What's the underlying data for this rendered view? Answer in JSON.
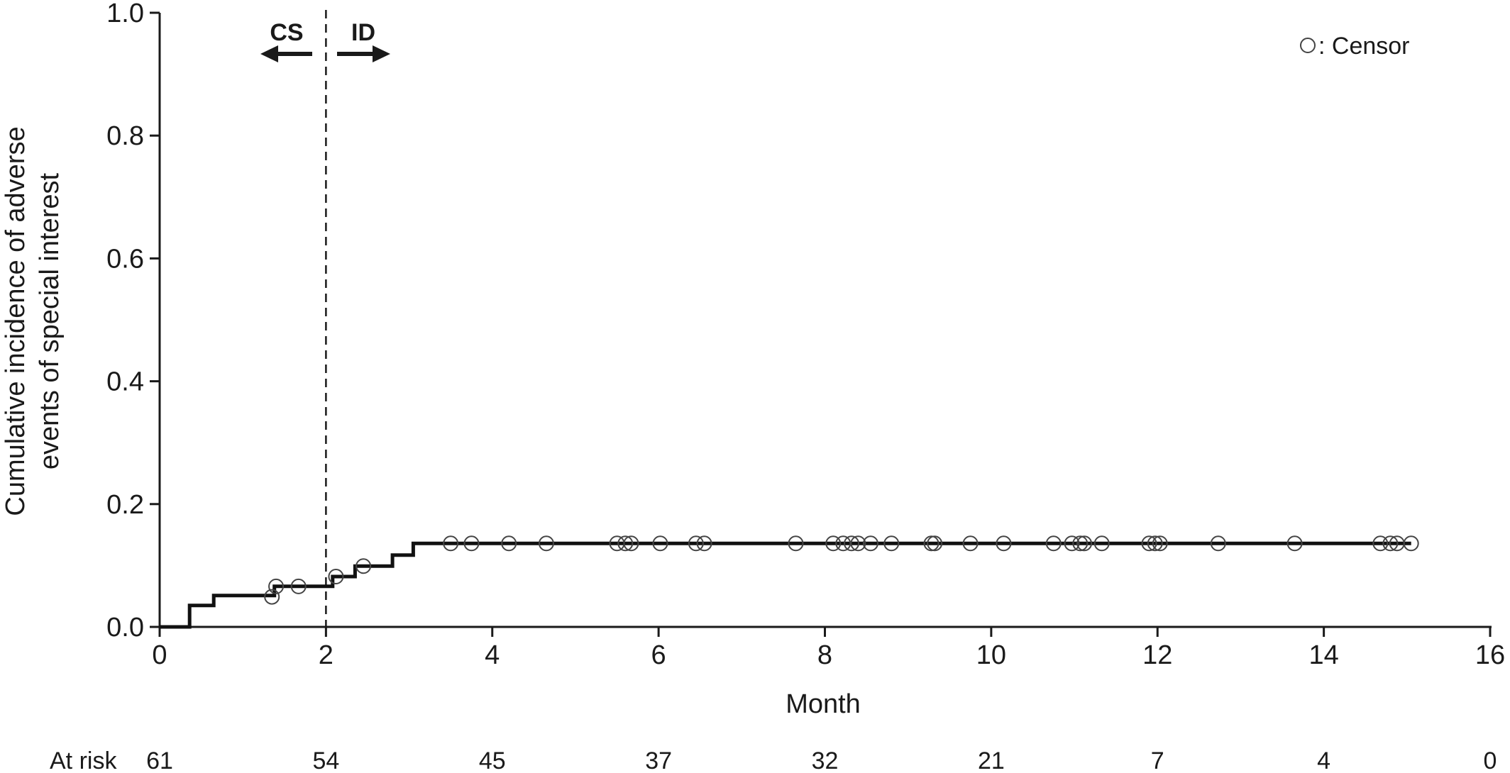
{
  "chart_data": {
    "type": "line",
    "subtype": "step",
    "title": "",
    "xlabel": "Month",
    "ylabel_lines": [
      "Cumulative incidence of adverse",
      "events of special interest"
    ],
    "xlim": [
      0,
      16
    ],
    "ylim": [
      0,
      1.0
    ],
    "xticks": [
      0,
      2,
      4,
      6,
      8,
      10,
      12,
      14,
      16
    ],
    "yticks": [
      0.0,
      0.2,
      0.4,
      0.6,
      0.8,
      1.0
    ],
    "xtick_labels": [
      "0",
      "2",
      "4",
      "6",
      "8",
      "10",
      "12",
      "14",
      "16"
    ],
    "ytick_labels": [
      "0.0",
      "0.2",
      "0.4",
      "0.6",
      "0.8",
      "1.0"
    ],
    "grid": false,
    "legend": {
      "position": "top-right",
      "symbol": "open-circle",
      "label": ": Censor"
    },
    "series": [
      {
        "step_points": [
          [
            0,
            0.0
          ],
          [
            0.36,
            0.0
          ],
          [
            0.36,
            0.035
          ],
          [
            0.65,
            0.035
          ],
          [
            0.65,
            0.051
          ],
          [
            1.38,
            0.051
          ],
          [
            1.38,
            0.066
          ],
          [
            2.08,
            0.066
          ],
          [
            2.08,
            0.082
          ],
          [
            2.35,
            0.082
          ],
          [
            2.35,
            0.099
          ],
          [
            2.8,
            0.099
          ],
          [
            2.8,
            0.117
          ],
          [
            3.05,
            0.117
          ],
          [
            3.05,
            0.136
          ],
          [
            15.05,
            0.136
          ]
        ],
        "censor_points": [
          [
            1.35,
            0.049
          ],
          [
            1.4,
            0.066
          ],
          [
            1.67,
            0.066
          ],
          [
            2.12,
            0.082
          ],
          [
            2.45,
            0.099
          ],
          [
            3.5,
            0.136
          ],
          [
            3.75,
            0.136
          ],
          [
            4.2,
            0.136
          ],
          [
            4.65,
            0.136
          ],
          [
            5.5,
            0.136
          ],
          [
            5.6,
            0.136
          ],
          [
            5.67,
            0.136
          ],
          [
            6.02,
            0.136
          ],
          [
            6.45,
            0.136
          ],
          [
            6.55,
            0.136
          ],
          [
            7.65,
            0.136
          ],
          [
            8.1,
            0.136
          ],
          [
            8.22,
            0.136
          ],
          [
            8.32,
            0.136
          ],
          [
            8.4,
            0.136
          ],
          [
            8.55,
            0.136
          ],
          [
            8.8,
            0.136
          ],
          [
            9.28,
            0.136
          ],
          [
            9.32,
            0.136
          ],
          [
            9.75,
            0.136
          ],
          [
            10.15,
            0.136
          ],
          [
            10.75,
            0.136
          ],
          [
            10.97,
            0.136
          ],
          [
            11.07,
            0.136
          ],
          [
            11.12,
            0.136
          ],
          [
            11.33,
            0.136
          ],
          [
            11.9,
            0.136
          ],
          [
            11.97,
            0.136
          ],
          [
            12.03,
            0.136
          ],
          [
            12.73,
            0.136
          ],
          [
            13.65,
            0.136
          ],
          [
            14.68,
            0.136
          ],
          [
            14.8,
            0.136
          ],
          [
            14.88,
            0.136
          ],
          [
            15.05,
            0.136
          ]
        ]
      }
    ],
    "annotations": {
      "vline_x": 2,
      "left_label": "CS",
      "right_label": "ID"
    },
    "at_risk": {
      "label": "At risk",
      "x": [
        0,
        2,
        4,
        6,
        8,
        10,
        12,
        14,
        16
      ],
      "counts": [
        "61",
        "54",
        "45",
        "37",
        "32",
        "21",
        "7",
        "4",
        "0"
      ]
    }
  }
}
